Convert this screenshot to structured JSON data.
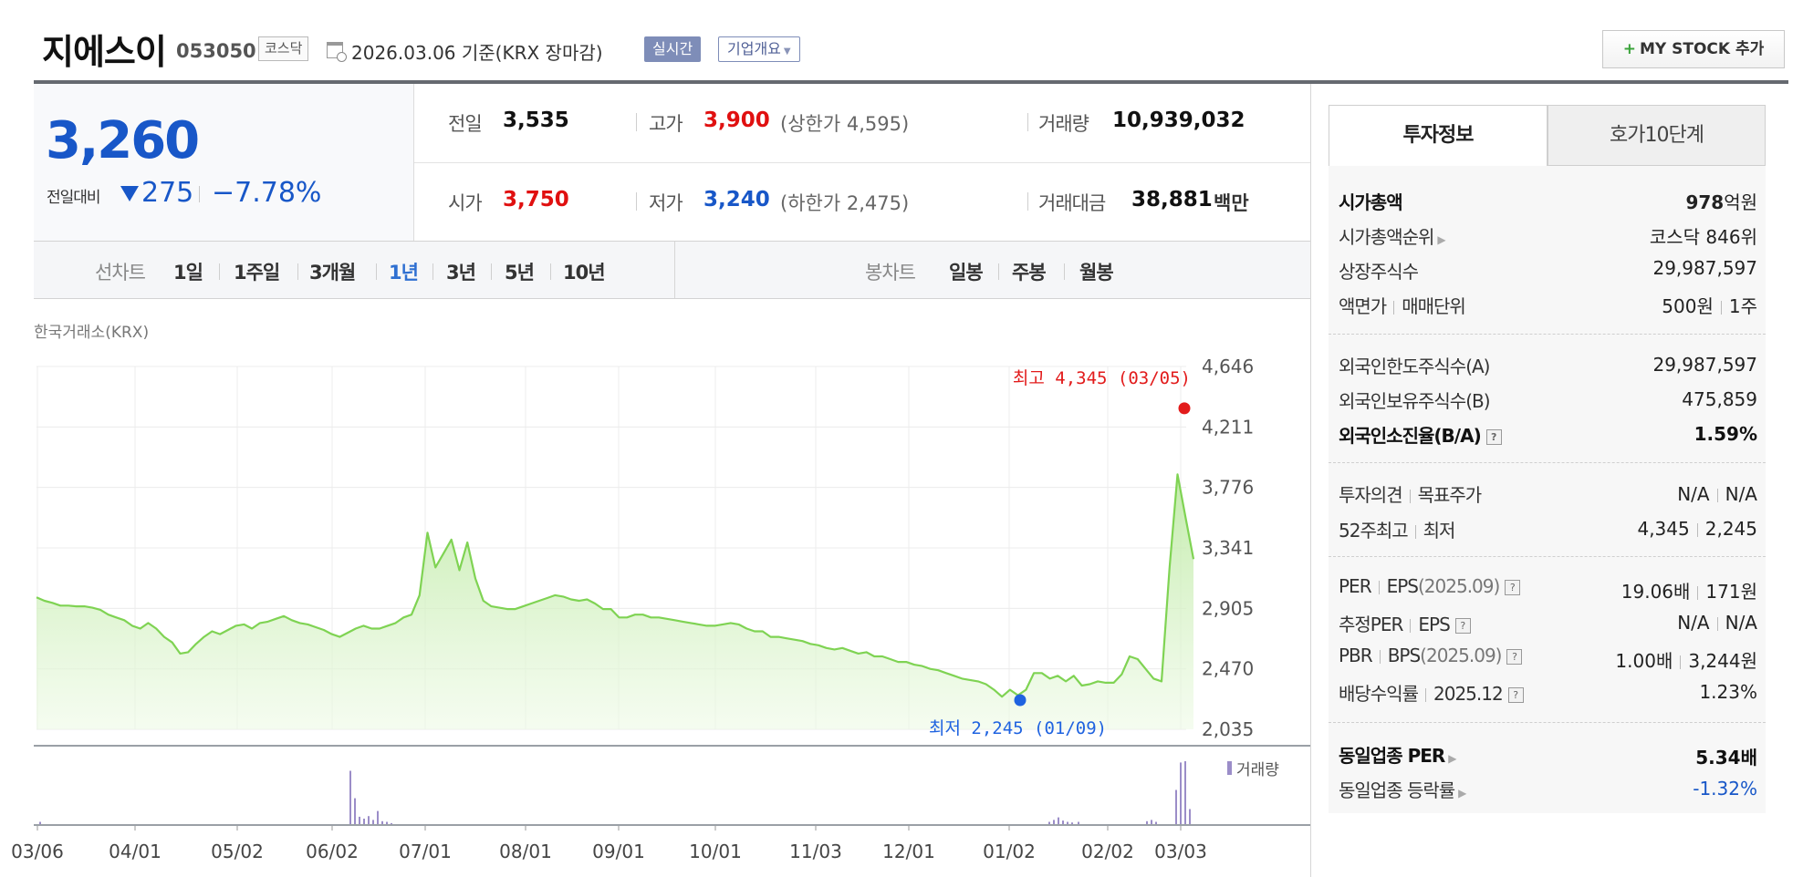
{
  "header": {
    "company_name": "지에스이",
    "code": "053050",
    "market": "코스닥",
    "date_text": "2026.03.06  기준(KRX 장마감)",
    "realtime_label": "실시간",
    "overview_label": "기업개요",
    "mystock_label": "MY STOCK 추가"
  },
  "price": {
    "current": "3,260",
    "change_label": "전일대비",
    "change": "275",
    "change_pct": "−7.78%",
    "direction": "down"
  },
  "info": {
    "prev_close_label": "전일",
    "prev_close": "3,535",
    "high_label": "고가",
    "high": "3,900",
    "upper_limit_text": "(상한가 4,595)",
    "volume_label": "거래량",
    "volume": "10,939,032",
    "open_label": "시가",
    "open": "3,750",
    "low_label": "저가",
    "low": "3,240",
    "lower_limit_text": "(하한가 2,475)",
    "value_label": "거래대금",
    "value": "38,881",
    "value_unit": "백만"
  },
  "periods": {
    "line_label": "선차트",
    "line_items": [
      "1일",
      "1주일",
      "3개월",
      "1년",
      "3년",
      "5년",
      "10년"
    ],
    "active_item": "1년",
    "candle_label": "봉차트",
    "candle_items": [
      "일봉",
      "주봉",
      "월봉"
    ]
  },
  "chart_source": "한국거래소(KRX)",
  "chart_data": {
    "type": "area",
    "y_ticks": [
      "4,646",
      "4,211",
      "3,776",
      "3,341",
      "2,905",
      "2,470",
      "2,035"
    ],
    "ylim": [
      2035,
      4646
    ],
    "x_ticks": [
      "03/06",
      "04/01",
      "05/02",
      "06/02",
      "07/01",
      "08/01",
      "09/01",
      "10/01",
      "11/03",
      "12/01",
      "01/02",
      "02/02",
      "03/03"
    ],
    "grid": true,
    "max_annotation": "최고 4,345 (03/05)",
    "min_annotation": "최저 2,245 (01/09)",
    "max_value": 4345,
    "min_value": 2245,
    "volume_legend": "거래량",
    "series": [
      {
        "values": [
          2985,
          2960,
          2945,
          2925,
          2925,
          2920,
          2920,
          2910,
          2895,
          2860,
          2840,
          2820,
          2780,
          2760,
          2800,
          2760,
          2700,
          2660,
          2580,
          2590,
          2650,
          2700,
          2740,
          2720,
          2750,
          2780,
          2790,
          2760,
          2800,
          2810,
          2830,
          2850,
          2820,
          2800,
          2790,
          2770,
          2750,
          2720,
          2700,
          2730,
          2760,
          2780,
          2760,
          2760,
          2780,
          2800,
          2840,
          2860,
          3000,
          3450,
          3200,
          3300,
          3400,
          3180,
          3380,
          3120,
          2960,
          2920,
          2910,
          2900,
          2900,
          2920,
          2940,
          2960,
          2980,
          3000,
          2990,
          2970,
          2960,
          2970,
          2940,
          2900,
          2900,
          2840,
          2840,
          2860,
          2860,
          2840,
          2840,
          2830,
          2820,
          2810,
          2800,
          2790,
          2780,
          2780,
          2790,
          2800,
          2790,
          2760,
          2740,
          2740,
          2700,
          2700,
          2690,
          2680,
          2670,
          2650,
          2640,
          2620,
          2610,
          2620,
          2600,
          2580,
          2590,
          2560,
          2560,
          2540,
          2520,
          2520,
          2500,
          2490,
          2470,
          2460,
          2440,
          2420,
          2400,
          2390,
          2380,
          2360,
          2320,
          2270,
          2320,
          2280,
          2320,
          2440,
          2440,
          2400,
          2420,
          2380,
          2420,
          2350,
          2360,
          2380,
          2370,
          2370,
          2430,
          2560,
          2540,
          2470,
          2400,
          2380,
          3200,
          3870,
          3560,
          3260
        ],
        "last_date": "03/06"
      }
    ]
  },
  "invest_panel": {
    "tab_invest": "투자정보",
    "tab_hoga": "호가10단계",
    "market_cap_label": "시가총액",
    "market_cap_num": "978",
    "market_cap_unit": "억원",
    "market_cap_rank_label": "시가총액순위",
    "market_cap_rank": "코스닥 846위",
    "shares_label": "상장주식수",
    "shares": "29,987,597",
    "par_label": "액면가",
    "trade_unit_label": "매매단위",
    "par_value": "500원",
    "trade_unit": "1주",
    "foreign_limit_label": "외국인한도주식수(A)",
    "foreign_limit": "29,987,597",
    "foreign_owned_label": "외국인보유주식수(B)",
    "foreign_owned": "475,859",
    "foreign_ratio_label": "외국인소진율(B/A)",
    "foreign_ratio": "1.59%",
    "opinion_label": "투자의견",
    "target_label": "목표주가",
    "opinion": "N/A",
    "target": "N/A",
    "w52_high_label": "52주최고",
    "w52_low_label": "최저",
    "w52_high": "4,345",
    "w52_low": "2,245",
    "per_label": "PER",
    "eps_label": "EPS",
    "eps_date": "(2025.09)",
    "per": "19.06배",
    "eps": "171원",
    "est_per_label": "추정PER",
    "est_eps_label": "EPS",
    "est_per": "N/A",
    "est_eps": "N/A",
    "pbr_label": "PBR",
    "bps_label": "BPS",
    "bps_date": "(2025.09)",
    "pbr": "1.00배",
    "bps": "3,244원",
    "dividend_label": "배당수익률",
    "dividend_date": "2025.12",
    "dividend": "1.23%",
    "industry_per_label": "동일업종 PER",
    "industry_per": "5.34배",
    "industry_change_label": "동일업종 등락률",
    "industry_change": "-1.32%"
  }
}
